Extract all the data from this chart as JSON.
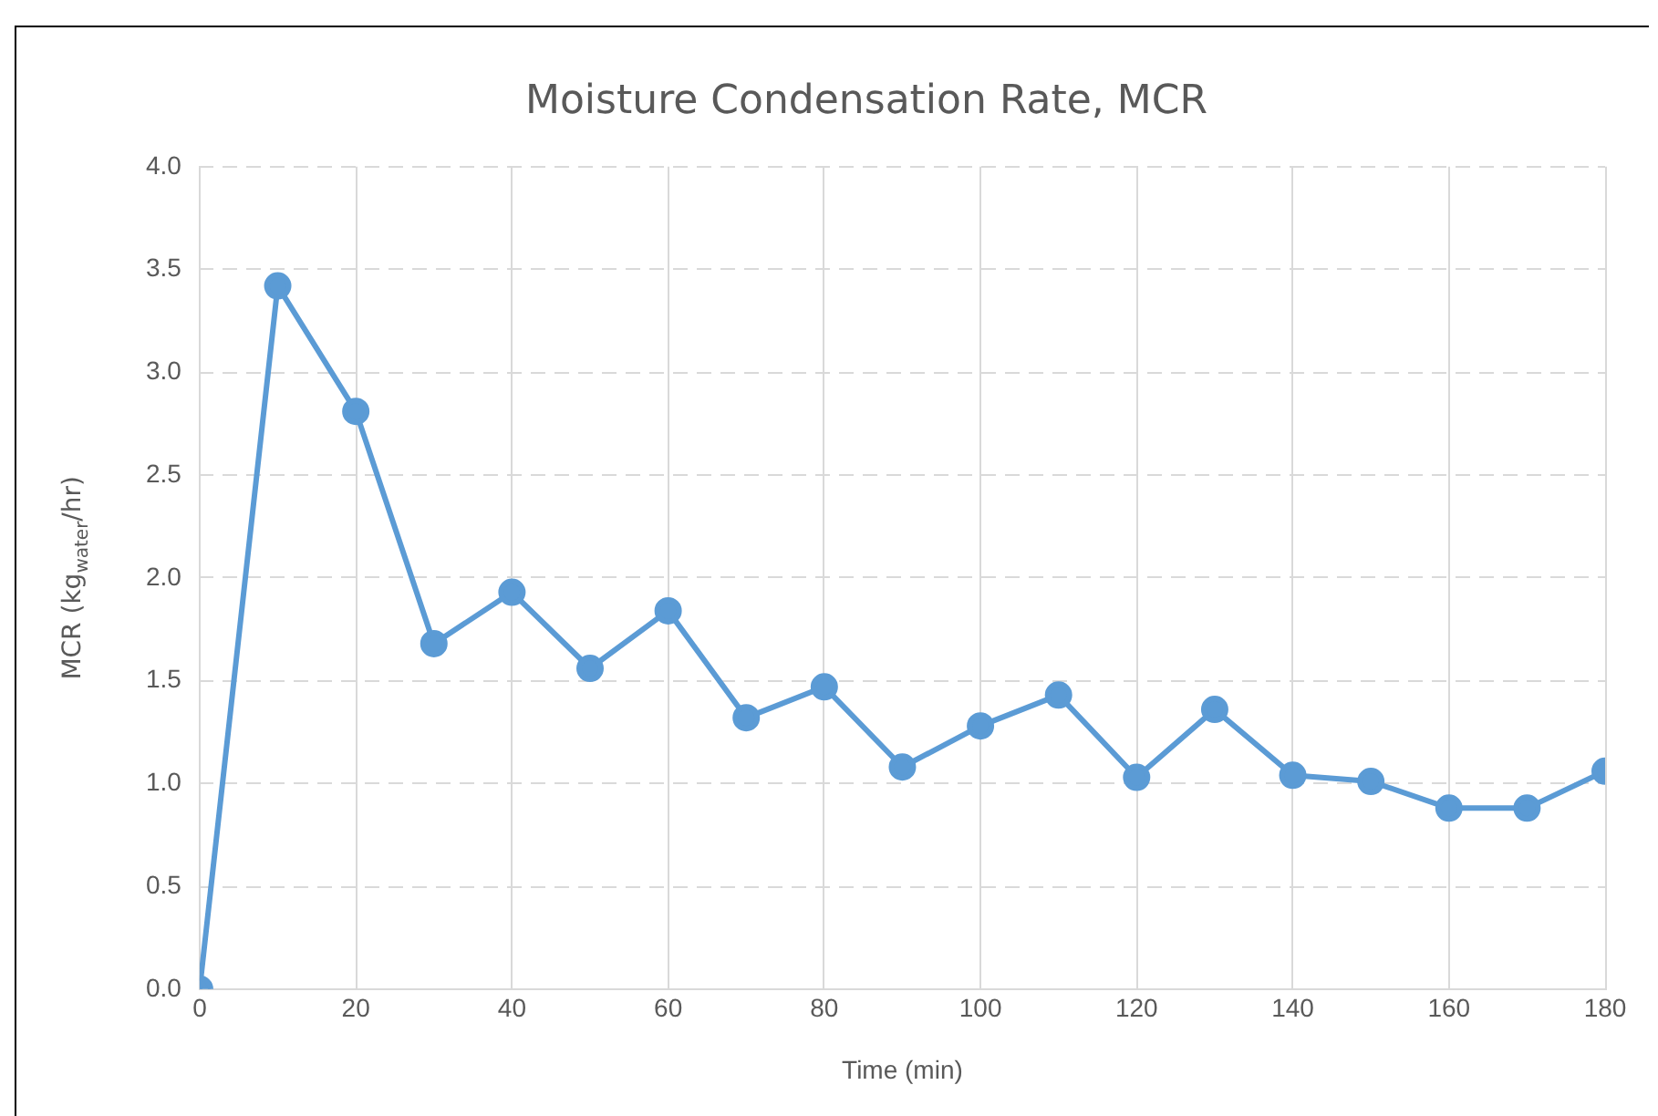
{
  "chart_data": {
    "type": "line",
    "title": "Moisture Condensation Rate, MCR",
    "xlabel": "Time (min)",
    "ylabel": "MCR (kg$_{water}$/hr)",
    "x": [
      0,
      10,
      20,
      30,
      40,
      50,
      60,
      70,
      80,
      90,
      100,
      110,
      120,
      130,
      140,
      150,
      160,
      170,
      180
    ],
    "series": [
      {
        "color": "#5b9bd5",
        "values": [
          0,
          3.42,
          2.81,
          1.68,
          1.93,
          1.56,
          1.84,
          1.32,
          1.47,
          1.08,
          1.28,
          1.43,
          1.03,
          1.36,
          1.04,
          1.01,
          0.88,
          0.88,
          1.06
        ]
      }
    ],
    "xlim": [
      0,
      180
    ],
    "xticks": [
      0,
      20,
      40,
      60,
      80,
      100,
      120,
      140,
      160,
      180
    ],
    "ylim": [
      0,
      4
    ],
    "yticks": [
      {
        "value": 0,
        "label": "0.0"
      },
      {
        "value": 0.5,
        "label": "0.5"
      },
      {
        "value": 1,
        "label": "1.0"
      },
      {
        "value": 1.5,
        "label": "1.5"
      },
      {
        "value": 2,
        "label": "2.0"
      },
      {
        "value": 2.5,
        "label": "2.5"
      },
      {
        "value": 3,
        "label": "3.0"
      },
      {
        "value": 3.5,
        "label": "3.5"
      },
      {
        "value": 4,
        "label": "4.0"
      }
    ],
    "grid": true,
    "legend": false,
    "marker": "circle",
    "line_style": "solid"
  }
}
